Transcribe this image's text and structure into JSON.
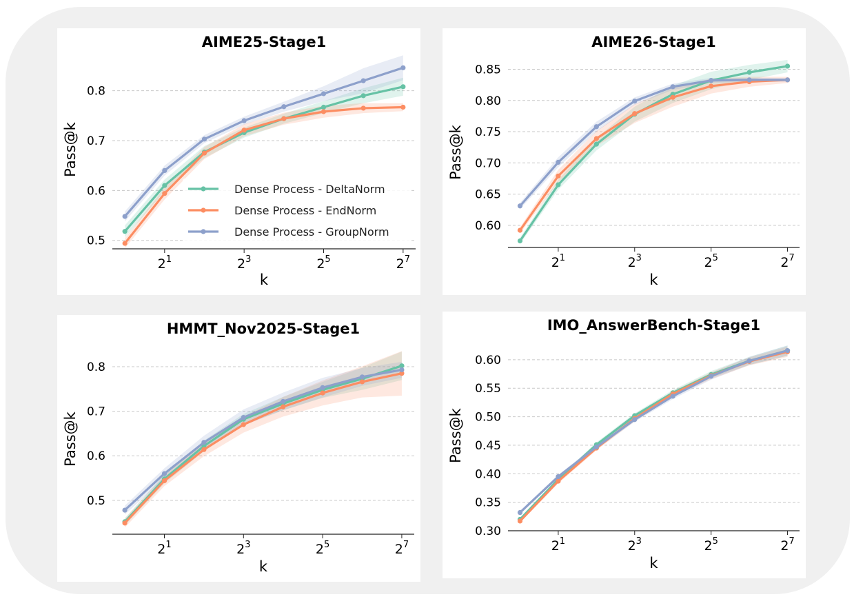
{
  "colors": {
    "DeltaNorm": "#66c2a5",
    "EndNorm": "#fc8d62",
    "GroupNorm": "#8da0cb",
    "grid": "#c8c8c8",
    "frame": "#f0f0f0"
  },
  "legend": {
    "entries": [
      "Dense Process - DeltaNorm",
      "Dense Process - EndNorm",
      "Dense Process - GroupNorm"
    ]
  },
  "chart_data": [
    {
      "type": "line",
      "title": "AIME25-Stage1",
      "xlabel": "k",
      "ylabel": "Pass@k",
      "x": [
        1,
        2,
        4,
        8,
        16,
        32,
        64,
        128
      ],
      "xscale": "log2",
      "xticks": [
        {
          "value": 2,
          "base": "2",
          "exp": "1"
        },
        {
          "value": 8,
          "base": "2",
          "exp": "3"
        },
        {
          "value": 32,
          "base": "2",
          "exp": "5"
        },
        {
          "value": 128,
          "base": "2",
          "exp": "7"
        }
      ],
      "yticks": [
        "0.5",
        "0.6",
        "0.7",
        "0.8"
      ],
      "ylim": [
        0.483,
        0.881
      ],
      "grid": "horizontal dashed",
      "legend_position": "lower-right",
      "series": [
        {
          "name": "Dense Process - DeltaNorm",
          "values": [
            0.518,
            0.61,
            0.677,
            0.716,
            0.744,
            0.767,
            0.79,
            0.808
          ],
          "band": [
            0.012,
            0.012,
            0.012,
            0.01,
            0.01,
            0.012,
            0.015,
            0.018
          ]
        },
        {
          "name": "Dense Process - EndNorm",
          "values": [
            0.494,
            0.594,
            0.675,
            0.721,
            0.744,
            0.758,
            0.765,
            0.767
          ],
          "band": [
            0.01,
            0.012,
            0.012,
            0.012,
            0.012,
            0.012,
            0.01,
            0.008
          ]
        },
        {
          "name": "Dense Process - GroupNorm",
          "values": [
            0.548,
            0.64,
            0.703,
            0.74,
            0.768,
            0.794,
            0.82,
            0.846
          ],
          "band": [
            0.01,
            0.01,
            0.008,
            0.008,
            0.01,
            0.015,
            0.025,
            0.025
          ]
        }
      ]
    },
    {
      "type": "line",
      "title": "AIME26-Stage1",
      "xlabel": "k",
      "ylabel": "Pass@k",
      "x": [
        1,
        2,
        4,
        8,
        16,
        32,
        64,
        128
      ],
      "xscale": "log2",
      "xticks": [
        {
          "value": 2,
          "base": "2",
          "exp": "1"
        },
        {
          "value": 8,
          "base": "2",
          "exp": "3"
        },
        {
          "value": 32,
          "base": "2",
          "exp": "5"
        },
        {
          "value": 128,
          "base": "2",
          "exp": "7"
        }
      ],
      "yticks": [
        "0.60",
        "0.65",
        "0.70",
        "0.75",
        "0.80",
        "0.85"
      ],
      "ylim": [
        0.5645,
        0.8693
      ],
      "grid": "horizontal dashed",
      "series": [
        {
          "name": "Dense Process - DeltaNorm",
          "values": [
            0.575,
            0.665,
            0.73,
            0.778,
            0.81,
            0.832,
            0.845,
            0.855
          ],
          "band": [
            0.005,
            0.008,
            0.01,
            0.012,
            0.014,
            0.014,
            0.012,
            0.01
          ]
        },
        {
          "name": "Dense Process - EndNorm",
          "values": [
            0.592,
            0.679,
            0.739,
            0.779,
            0.805,
            0.823,
            0.83,
            0.833
          ],
          "band": [
            0.005,
            0.01,
            0.012,
            0.015,
            0.015,
            0.012,
            0.008,
            0.005
          ]
        },
        {
          "name": "Dense Process - GroupNorm",
          "values": [
            0.631,
            0.701,
            0.758,
            0.799,
            0.822,
            0.832,
            0.833,
            0.833
          ],
          "band": [
            0.005,
            0.008,
            0.008,
            0.006,
            0.005,
            0.004,
            0.003,
            0.003
          ]
        }
      ]
    },
    {
      "type": "line",
      "title": "HMMT_Nov2025-Stage1",
      "xlabel": "k",
      "ylabel": "Pass@k",
      "x": [
        1,
        2,
        4,
        8,
        16,
        32,
        64,
        128
      ],
      "xscale": "log2",
      "xticks": [
        {
          "value": 2,
          "base": "2",
          "exp": "1"
        },
        {
          "value": 8,
          "base": "2",
          "exp": "3"
        },
        {
          "value": 32,
          "base": "2",
          "exp": "5"
        },
        {
          "value": 128,
          "base": "2",
          "exp": "7"
        }
      ],
      "yticks": [
        "0.5",
        "0.6",
        "0.7",
        "0.8"
      ],
      "ylim": [
        0.424,
        0.851
      ],
      "grid": "horizontal dashed",
      "series": [
        {
          "name": "Dense Process - DeltaNorm",
          "values": [
            0.452,
            0.548,
            0.622,
            0.682,
            0.717,
            0.748,
            0.773,
            0.802
          ],
          "band": [
            0.008,
            0.01,
            0.012,
            0.012,
            0.015,
            0.018,
            0.025,
            0.032
          ]
        },
        {
          "name": "Dense Process - EndNorm",
          "values": [
            0.449,
            0.544,
            0.614,
            0.67,
            0.71,
            0.741,
            0.766,
            0.785
          ],
          "band": [
            0.01,
            0.012,
            0.015,
            0.018,
            0.022,
            0.028,
            0.035,
            0.05
          ]
        },
        {
          "name": "Dense Process - GroupNorm",
          "values": [
            0.478,
            0.56,
            0.63,
            0.686,
            0.722,
            0.753,
            0.777,
            0.793
          ],
          "band": [
            0.01,
            0.012,
            0.015,
            0.018,
            0.02,
            0.022,
            0.02,
            0.018
          ]
        }
      ]
    },
    {
      "type": "line",
      "title": "IMO_AnswerBench-Stage1",
      "xlabel": "k",
      "ylabel": "Pass@k",
      "x": [
        1,
        2,
        4,
        8,
        16,
        32,
        64,
        128
      ],
      "xscale": "log2",
      "xticks": [
        {
          "value": 2,
          "base": "2",
          "exp": "1"
        },
        {
          "value": 8,
          "base": "2",
          "exp": "3"
        },
        {
          "value": 32,
          "base": "2",
          "exp": "5"
        },
        {
          "value": 128,
          "base": "2",
          "exp": "7"
        }
      ],
      "yticks": [
        "0.30",
        "0.35",
        "0.40",
        "0.45",
        "0.50",
        "0.55",
        "0.60"
      ],
      "ylim": [
        0.3,
        0.6337
      ],
      "grid": "horizontal dashed",
      "series": [
        {
          "name": "Dense Process - DeltaNorm",
          "values": [
            0.32,
            0.39,
            0.451,
            0.502,
            0.542,
            0.574,
            0.598,
            0.616
          ],
          "band": [
            0.003,
            0.003,
            0.004,
            0.004,
            0.005,
            0.006,
            0.007,
            0.009
          ]
        },
        {
          "name": "Dense Process - EndNorm",
          "values": [
            0.317,
            0.387,
            0.445,
            0.497,
            0.54,
            0.572,
            0.597,
            0.614
          ],
          "band": [
            0.003,
            0.004,
            0.004,
            0.005,
            0.005,
            0.006,
            0.007,
            0.009
          ]
        },
        {
          "name": "Dense Process - GroupNorm",
          "values": [
            0.332,
            0.395,
            0.447,
            0.495,
            0.536,
            0.571,
            0.598,
            0.616
          ],
          "band": [
            0.003,
            0.003,
            0.004,
            0.004,
            0.005,
            0.006,
            0.007,
            0.009
          ]
        }
      ]
    }
  ]
}
